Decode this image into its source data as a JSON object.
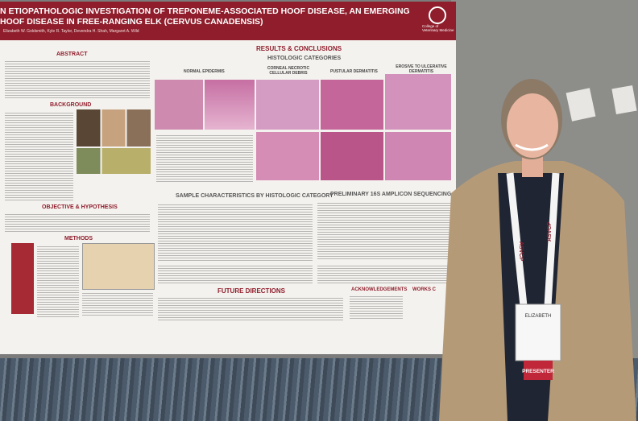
{
  "poster": {
    "title_line1": "N ETIOPATHOLOGIC INVESTIGATION OF TREPONEME-ASSOCIATED HOOF DISEASE, AN EMERGING",
    "title_line2": "HOOF DISEASE IN FREE-RANGING ELK (CERVUS CANADENSIS)",
    "authors": "Elizabeth W. Goldsmith, Kyle R. Taylor, Devendra H. Shah, Margaret A. Wild",
    "logo": "College of Veterinary Medicine",
    "abstract": "ABSTRACT",
    "background": "BACKGROUND",
    "objective": "OBJECTIVE & HYPOTHESIS",
    "methods": "METHODS",
    "results": "RESULTS & CONCLUSIONS",
    "histologic": "HISTOLOGIC CATEGORIES",
    "cat1": "NORMAL EPIDERMIS",
    "cat2": "CORNEAL NECROTIC CELLULAR DEBRIS",
    "cat3": "PUSTULAR DERMATITIS",
    "cat4": "EROSIVE TO ULCERATIVE DERMATITIS",
    "sample": "SAMPLE CHARACTERISTICS BY HISTOLOGIC CATEGORY",
    "sequencing": "PRELIMINARY 16S AMPLICON SEQUENCING RESULTS",
    "future": "FUTURE DIRECTIONS",
    "acknowledgements": "ACKNOWLEDGEMENTS",
    "works": "WORKS C"
  },
  "lanyard": "ASVCP",
  "badge": {
    "name": "ELIZABETH",
    "role": "PRESENTER"
  }
}
